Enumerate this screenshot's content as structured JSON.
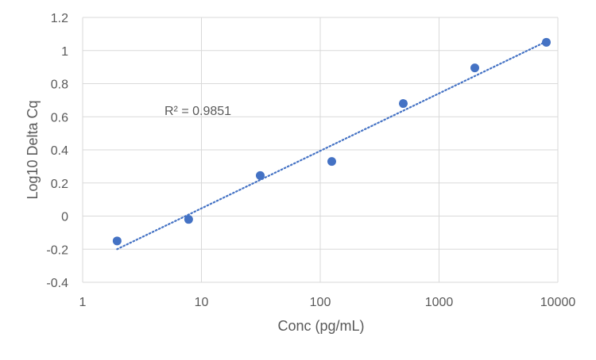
{
  "chart_data": {
    "type": "scatter",
    "title": "",
    "xlabel": "Conc (pg/mL)",
    "ylabel": "Log10 Delta Cq",
    "x_scale": "log",
    "xlim": [
      1,
      10000
    ],
    "ylim": [
      -0.4,
      1.2
    ],
    "x_ticks": [
      1,
      10,
      100,
      1000,
      10000
    ],
    "x_tick_labels": [
      "1",
      "10",
      "100",
      "1000",
      "10000"
    ],
    "y_ticks": [
      -0.4,
      -0.2,
      0,
      0.2,
      0.4,
      0.6,
      0.8,
      1,
      1.2
    ],
    "y_tick_labels": [
      "-0.4",
      "-0.2",
      "0",
      "0.2",
      "0.4",
      "0.6",
      "0.8",
      "1",
      "1.2"
    ],
    "grid": true,
    "legend": "none",
    "series": [
      {
        "x": [
          1.95,
          7.8,
          31.25,
          125,
          500,
          2000,
          8000
        ],
        "y": [
          -0.15,
          -0.02,
          0.245,
          0.33,
          0.68,
          0.895,
          1.05
        ],
        "color": "#4472C4"
      }
    ],
    "trendline": {
      "type": "logarithmic",
      "style": "dotted",
      "color": "#4472C4",
      "x_start": 1.95,
      "x_end": 8000,
      "y_start": -0.2,
      "y_end": 1.055
    },
    "annotations": [
      {
        "text": "R² = 0.9851"
      }
    ],
    "colors": {
      "gridline": "#d9d9d9",
      "text": "#595959",
      "point": "#4472C4"
    }
  }
}
